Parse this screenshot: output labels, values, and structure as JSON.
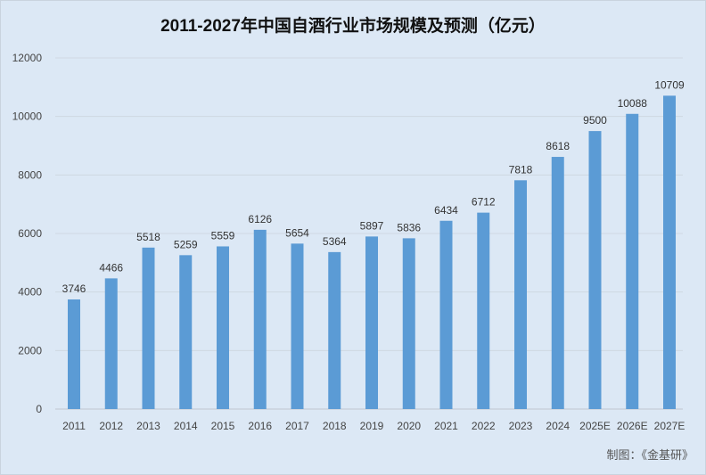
{
  "chart_data": {
    "type": "bar",
    "title": "2011-2027年中国自酒行业市场规模及预测（亿元）",
    "categories": [
      "2011",
      "2012",
      "2013",
      "2014",
      "2015",
      "2016",
      "2017",
      "2018",
      "2019",
      "2020",
      "2021",
      "2022",
      "2023",
      "2024",
      "2025E",
      "2026E",
      "2027E"
    ],
    "values": [
      3746,
      4466,
      5518,
      5259,
      5559,
      6126,
      5654,
      5364,
      5897,
      5836,
      6434,
      6712,
      7818,
      8618,
      9500,
      10088,
      10709
    ],
    "ylim": [
      0,
      12000
    ],
    "yticks": [
      0,
      2000,
      4000,
      6000,
      8000,
      10000,
      12000
    ],
    "xlabel": "",
    "ylabel": "",
    "grid": true,
    "bar_color": "#5b9bd5"
  },
  "source": "制图：《金基研》"
}
